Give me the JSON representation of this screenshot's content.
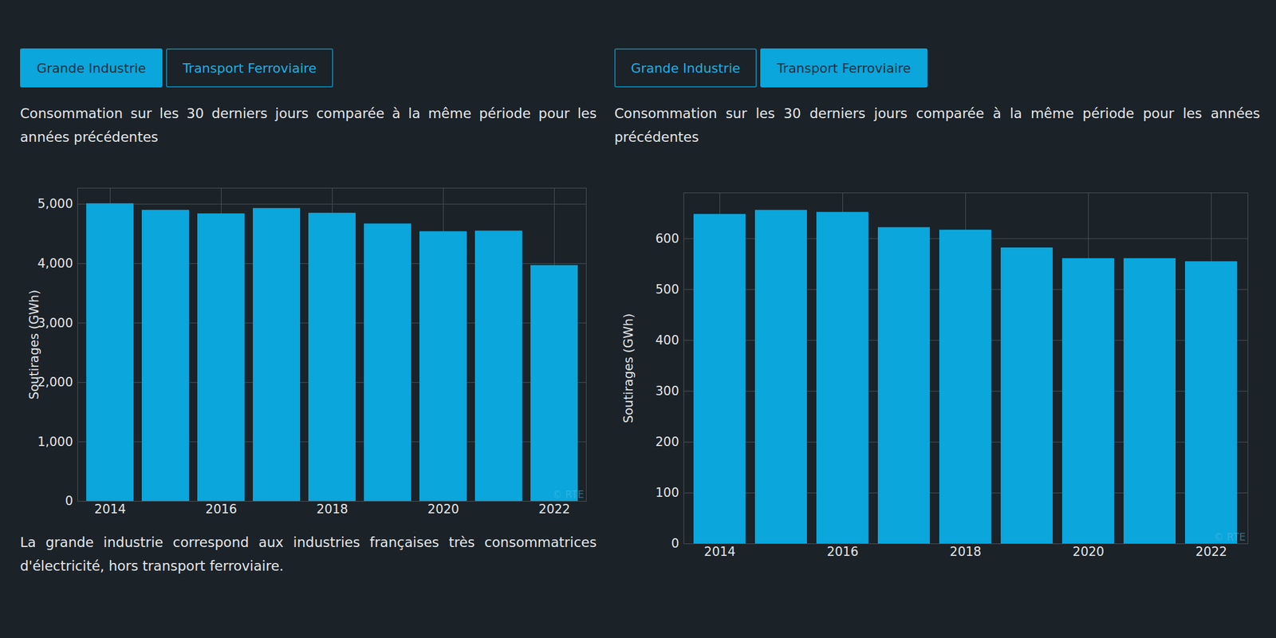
{
  "tabs": [
    "Grande Industrie",
    "Transport Ferroviaire"
  ],
  "chart_data": [
    {
      "type": "bar",
      "active_tab": "Grande Industrie",
      "subtitle": "Consommation sur les 30 derniers jours comparée à la même période pour les années précédentes",
      "caption": "La grande industrie correspond aux industries françaises très consommatrices d'électricité, hors transport ferroviaire.",
      "annotations": [
        "© RTE"
      ],
      "ylabel": "Soutirages (GWh)",
      "categories": [
        "2014",
        null,
        "2016",
        null,
        "2018",
        null,
        "2020",
        null,
        "2022"
      ],
      "values": [
        5010,
        4900,
        4840,
        4930,
        4850,
        4670,
        4540,
        4550,
        3970
      ],
      "color": "#0aa6dc",
      "ylim": [
        0,
        5270
      ],
      "yticks": [
        0,
        1000,
        2000,
        3000,
        4000,
        5000
      ],
      "grid": true
    },
    {
      "type": "bar",
      "active_tab": "Transport Ferroviaire",
      "subtitle": "Consommation sur les 30 derniers jours comparée à la même période pour les années précédentes",
      "annotations": [
        "© RTE"
      ],
      "ylabel": "Soutirages (GWh)",
      "categories": [
        "2014",
        null,
        "2016",
        null,
        "2018",
        null,
        "2020",
        null,
        "2022"
      ],
      "values": [
        648,
        656,
        652,
        622,
        617,
        582,
        561,
        561,
        555
      ],
      "color": "#0aa6dc",
      "ylim": [
        0,
        690
      ],
      "yticks": [
        0,
        100,
        200,
        300,
        400,
        500,
        600
      ],
      "grid": true
    }
  ]
}
